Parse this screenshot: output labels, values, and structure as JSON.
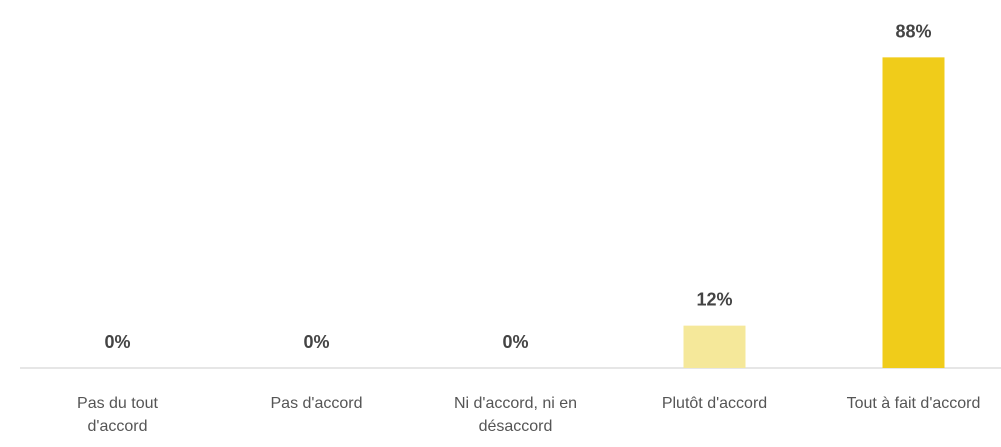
{
  "chart_data": {
    "type": "bar",
    "categories": [
      "Pas du tout d'accord",
      "Pas d'accord",
      "Ni d'accord, ni en désaccord",
      "Plutôt d'accord",
      "Tout à fait d'accord"
    ],
    "values": [
      0,
      0,
      0,
      12,
      88
    ],
    "value_labels": [
      "0%",
      "0%",
      "0%",
      "12%",
      "88%"
    ],
    "colors": [
      "#f5e89a",
      "#f5e89a",
      "#f5e89a",
      "#f5e89a",
      "#f0cc1a"
    ],
    "ylim": [
      0,
      100
    ]
  }
}
